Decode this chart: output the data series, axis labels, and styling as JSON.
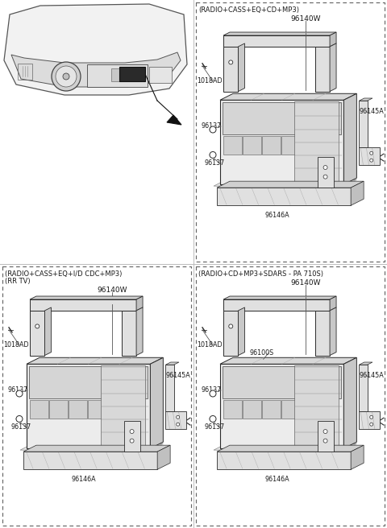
{
  "bg_color": "#ffffff",
  "line_color": "#2a2a2a",
  "dash_color": "#555555",
  "panels": {
    "top_right": {
      "title": "(RADIO+CASS+EQ+CD+MP3)",
      "part_num": "96140W",
      "parts": [
        "1018AD",
        "96145A",
        "96137",
        "96137",
        "96146A"
      ],
      "extra": null
    },
    "bottom_left": {
      "title1": "(RADIO+CASS+EQ+I/D CDC+MP3)",
      "title2": "(RR TV)",
      "part_num": "96140W",
      "parts": [
        "1018AD",
        "96145A",
        "96137",
        "96137",
        "96146A"
      ],
      "extra": null
    },
    "bottom_right": {
      "title": "(RADIO+CD+MP3+SDARS - PA 710S)",
      "part_num": "96140W",
      "parts": [
        "1018AD",
        "96145A",
        "96100S",
        "96137",
        "96137",
        "96146A"
      ],
      "extra": "96100S"
    }
  },
  "font_size_title": 6.0,
  "font_size_label": 5.8,
  "font_size_partnum": 6.5
}
